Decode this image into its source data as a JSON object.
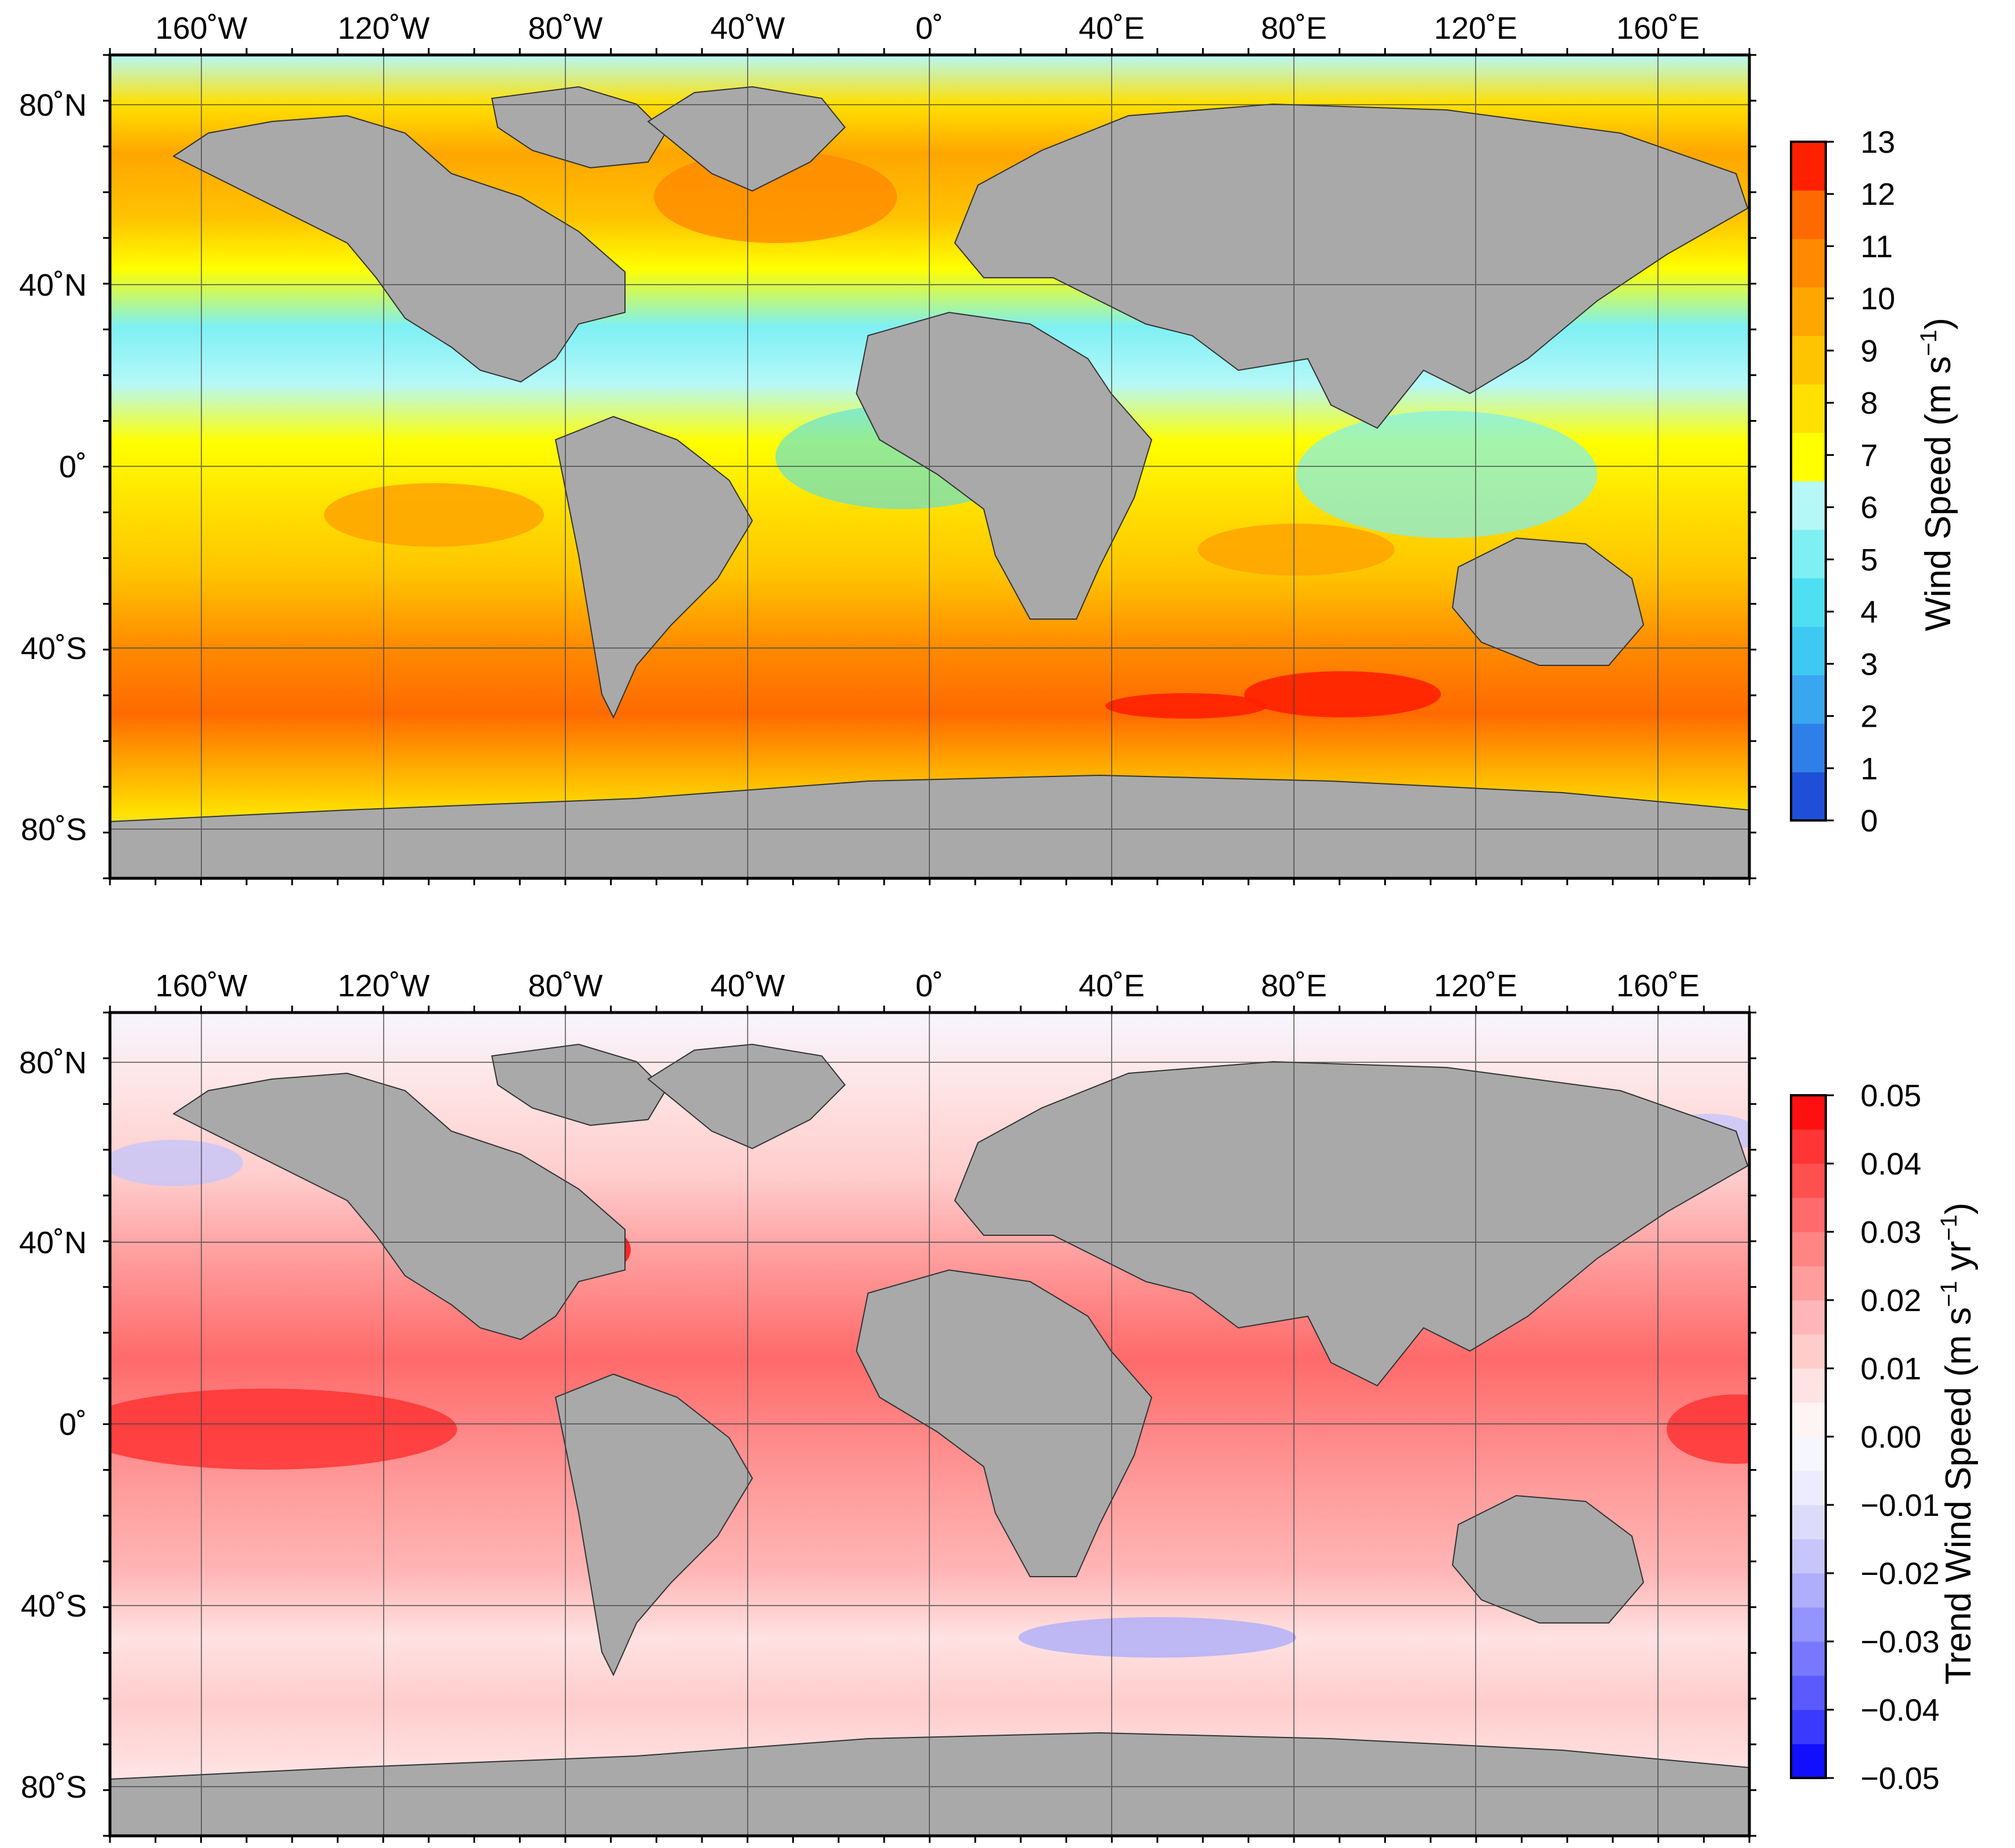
{
  "top_panel": {
    "lon_labels": [
      "160˚W",
      "120˚W",
      "80˚W",
      "40˚W",
      "0˚",
      "40˚E",
      "80˚E",
      "120˚E",
      "160˚E"
    ],
    "lat_labels": [
      "80˚N",
      "40˚N",
      "0˚",
      "40˚S",
      "80˚S"
    ],
    "colorbar": {
      "title": "Wind Speed (m s",
      "title_sup": "−1",
      "title_end": ")",
      "ticks": [
        "0",
        "1",
        "2",
        "3",
        "4",
        "5",
        "6",
        "7",
        "8",
        "9",
        "10",
        "11",
        "12",
        "13"
      ],
      "range": [
        0,
        13
      ],
      "colors": [
        "#1f4fd8",
        "#2f7fe8",
        "#39a6f0",
        "#3ec8f2",
        "#4ee0f2",
        "#7ef0f4",
        "#b6f8f8",
        "#ffff00",
        "#ffe000",
        "#ffc400",
        "#ffa600",
        "#ff8a00",
        "#ff6a00",
        "#ff2000"
      ]
    }
  },
  "bottom_panel": {
    "lon_labels": [
      "160˚W",
      "120˚W",
      "80˚W",
      "40˚W",
      "0˚",
      "40˚E",
      "80˚E",
      "120˚E",
      "160˚E"
    ],
    "lat_labels": [
      "80˚N",
      "40˚N",
      "0˚",
      "40˚S",
      "80˚S"
    ],
    "colorbar": {
      "title": "Trend Wind Speed (m s",
      "title_sup1": "−1",
      "title_mid": " yr",
      "title_sup2": "−1",
      "title_end": ")",
      "ticks": [
        "−0.05",
        "−0.04",
        "−0.03",
        "−0.02",
        "−0.01",
        "0.00",
        "0.01",
        "0.02",
        "0.03",
        "0.04",
        "0.05"
      ],
      "range": [
        -0.05,
        0.05
      ],
      "colors": [
        "#1010ff",
        "#3a3aff",
        "#5a5aff",
        "#7878ff",
        "#9494ff",
        "#aeaefa",
        "#c6c6fa",
        "#dcdcfa",
        "#ececfc",
        "#f6f6fe",
        "#fff4f4",
        "#ffe2e2",
        "#ffcccc",
        "#ffb6b6",
        "#ff9c9c",
        "#ff8484",
        "#ff6a6a",
        "#ff5050",
        "#ff3434",
        "#ff1010"
      ]
    }
  },
  "colors": {
    "land": "#a9a9a9",
    "frame": "#000000",
    "grid": "#555555"
  }
}
